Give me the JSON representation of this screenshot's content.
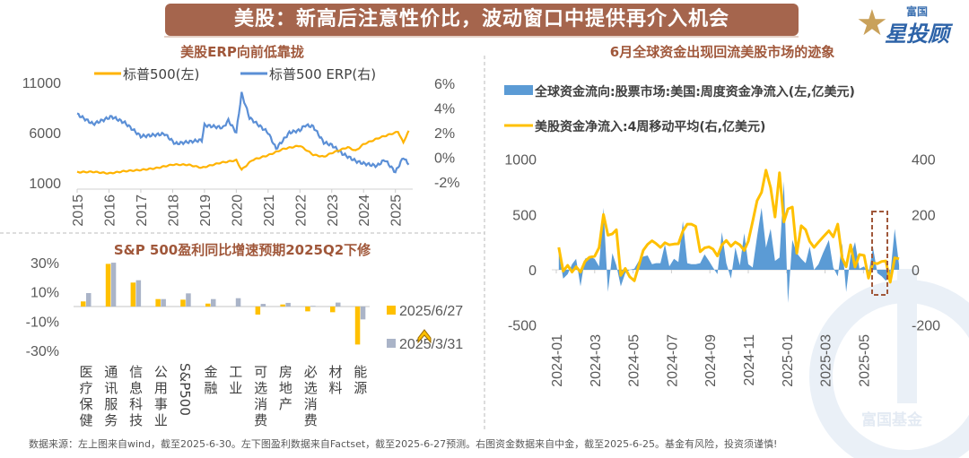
{
  "banner_title": "美股：新高后注意性价比，波动窗口中提供再介入机会",
  "logo": {
    "line1": "富国",
    "line2": "星投顾",
    "watermark": "富国基金"
  },
  "footer": "数据来源：左上图来自wind，截至2025-6-30。左下图盈利数据来自Factset，截至2025-6-27预测。右图资金数据来自中金，截至2025-6-25。基金有风险，投资须谨慎!",
  "colors": {
    "orange": "#ffb300",
    "blue": "#5b9bd5",
    "gray_bar": "#aab4c8",
    "title_brown": "#a0573a",
    "banner": "#a5654d"
  },
  "chart_data": [
    {
      "type": "line",
      "title": "美股ERP向前低靠拢",
      "legend_position": "top",
      "y_left_ticks": [
        "11000",
        "6000",
        "1000"
      ],
      "y_left_range": [
        1000,
        11000
      ],
      "y_right_ticks": [
        "6%",
        "4%",
        "2%",
        "0%",
        "-2%"
      ],
      "y_right_range": [
        -2,
        6
      ],
      "x_ticks": [
        "2015",
        "2016",
        "2017",
        "2018",
        "2019",
        "2020",
        "2021",
        "2022",
        "2023",
        "2024",
        "2025"
      ],
      "series": [
        {
          "name": "标普500(左)",
          "axis": "left",
          "color": "#ffb300",
          "points": [
            [
              "2015-01",
              2058
            ],
            [
              "2015-07",
              2100
            ],
            [
              "2016-01",
              1940
            ],
            [
              "2016-07",
              2170
            ],
            [
              "2017-01",
              2280
            ],
            [
              "2017-07",
              2470
            ],
            [
              "2018-01",
              2820
            ],
            [
              "2018-07",
              2800
            ],
            [
              "2018-12",
              2500
            ],
            [
              "2019-07",
              3000
            ],
            [
              "2020-01",
              3250
            ],
            [
              "2020-03",
              2300
            ],
            [
              "2020-07",
              3270
            ],
            [
              "2021-01",
              3750
            ],
            [
              "2021-07",
              4400
            ],
            [
              "2022-01",
              4700
            ],
            [
              "2022-06",
              3800
            ],
            [
              "2022-10",
              3600
            ],
            [
              "2023-01",
              3970
            ],
            [
              "2023-07",
              4550
            ],
            [
              "2023-10",
              4200
            ],
            [
              "2024-01",
              4850
            ],
            [
              "2024-07",
              5500
            ],
            [
              "2025-01",
              6000
            ],
            [
              "2025-02",
              6100
            ],
            [
              "2025-04",
              5000
            ],
            [
              "2025-06",
              6200
            ]
          ]
        },
        {
          "name": "标普500 ERP(右)",
          "axis": "right",
          "color": "#5b8fd6",
          "points": [
            [
              "2015-01",
              3.5
            ],
            [
              "2015-07",
              2.7
            ],
            [
              "2016-02",
              3.3
            ],
            [
              "2016-07",
              2.8
            ],
            [
              "2017-01",
              1.7
            ],
            [
              "2017-10",
              1.9
            ],
            [
              "2018-02",
              1.1
            ],
            [
              "2018-12",
              1.4
            ],
            [
              "2019-01",
              2.6
            ],
            [
              "2019-08",
              2.4
            ],
            [
              "2019-10",
              3.0
            ],
            [
              "2020-01",
              2.0
            ],
            [
              "2020-03",
              5.2
            ],
            [
              "2020-06",
              3.2
            ],
            [
              "2021-01",
              2.0
            ],
            [
              "2021-04",
              0.7
            ],
            [
              "2021-09",
              2.0
            ],
            [
              "2022-01",
              2.2
            ],
            [
              "2022-03",
              2.6
            ],
            [
              "2022-06",
              2.5
            ],
            [
              "2022-10",
              1.2
            ],
            [
              "2023-01",
              1.0
            ],
            [
              "2023-05",
              0.3
            ],
            [
              "2023-10",
              -0.3
            ],
            [
              "2024-01",
              -0.5
            ],
            [
              "2024-06",
              -0.7
            ],
            [
              "2024-09",
              -0.2
            ],
            [
              "2025-01",
              -1.2
            ],
            [
              "2025-04",
              0.0
            ],
            [
              "2025-06",
              -0.6
            ]
          ]
        }
      ]
    },
    {
      "type": "bar",
      "title": "S&P 500盈利同比增速预期2025Q2下修",
      "legend_position": "right",
      "y_ticks": [
        "30%",
        "10%",
        "-10%",
        "-30%"
      ],
      "categories": [
        "医疗保健",
        "通讯服务",
        "信息科技",
        "公用事业",
        "S&P500",
        "金融",
        "工业",
        "可选消费",
        "房地产",
        "必选消费",
        "材料",
        "能源"
      ],
      "series": [
        {
          "name": "2025/6/27",
          "color": "#ffc000",
          "values": [
            3.5,
            29.2,
            16.4,
            5.1,
            4.7,
            2.0,
            0,
            -5.5,
            1.4,
            -3.3,
            -3.9,
            -26
          ]
        },
        {
          "name": "2025/3/31",
          "color": "#aab4c8",
          "values": [
            9.2,
            30,
            18,
            5.1,
            9,
            5.1,
            5.7,
            1.8,
            2.5,
            0.4,
            2.7,
            -8.8
          ]
        }
      ]
    },
    {
      "type": "area+line",
      "title": "6月全球资金出现回流美股市场的迹象",
      "legend_position": "top",
      "y_left_ticks": [
        "1000",
        "500",
        "0",
        "-500"
      ],
      "y_left_range": [
        -500,
        1000
      ],
      "y_right_ticks": [
        "400",
        "200",
        "0",
        "-200"
      ],
      "y_right_range": [
        -200,
        400
      ],
      "x_ticks": [
        "2024-01",
        "2024-03",
        "2024-05",
        "2024-07",
        "2024-09",
        "2024-11",
        "2025-01",
        "2025-03",
        "2025-05"
      ],
      "x": [
        "2024-01-05",
        "2024-01-12",
        "2024-01-19",
        "2024-01-26",
        "2024-02-02",
        "2024-02-09",
        "2024-02-16",
        "2024-02-23",
        "2024-03-01",
        "2024-03-08",
        "2024-03-15",
        "2024-03-22",
        "2024-03-29",
        "2024-04-05",
        "2024-04-12",
        "2024-04-19",
        "2024-04-26",
        "2024-05-03",
        "2024-05-10",
        "2024-05-17",
        "2024-05-24",
        "2024-05-31",
        "2024-06-07",
        "2024-06-14",
        "2024-06-21",
        "2024-06-28",
        "2024-07-05",
        "2024-07-12",
        "2024-07-19",
        "2024-07-26",
        "2024-08-02",
        "2024-08-09",
        "2024-08-16",
        "2024-08-23",
        "2024-08-30",
        "2024-09-06",
        "2024-09-13",
        "2024-09-20",
        "2024-09-27",
        "2024-10-04",
        "2024-10-11",
        "2024-10-18",
        "2024-10-25",
        "2024-11-01",
        "2024-11-08",
        "2024-11-15",
        "2024-11-22",
        "2024-11-29",
        "2024-12-06",
        "2024-12-13",
        "2024-12-20",
        "2024-12-27",
        "2025-01-03",
        "2025-01-10",
        "2025-01-17",
        "2025-01-24",
        "2025-01-31",
        "2025-02-07",
        "2025-02-14",
        "2025-02-21",
        "2025-02-28",
        "2025-03-07",
        "2025-03-14",
        "2025-03-21",
        "2025-03-28",
        "2025-04-04",
        "2025-04-11",
        "2025-04-18",
        "2025-04-25",
        "2025-05-02",
        "2025-05-09",
        "2025-05-16",
        "2025-05-23",
        "2025-05-30",
        "2025-06-06",
        "2025-06-13",
        "2025-06-20",
        "2025-06-27"
      ],
      "series": [
        {
          "name": "全球资金流向:股票市场:美国:周度资金净流入(左,亿美元)",
          "axis": "left",
          "kind": "area",
          "color": "#5b9bd5",
          "values": [
            150,
            -80,
            -40,
            50,
            100,
            -150,
            100,
            120,
            100,
            30,
            560,
            -200,
            150,
            40,
            -150,
            -30,
            0,
            10,
            80,
            120,
            130,
            50,
            60,
            60,
            230,
            30,
            100,
            70,
            440,
            60,
            50,
            50,
            60,
            140,
            80,
            20,
            -40,
            340,
            60,
            -80,
            200,
            40,
            330,
            50,
            20,
            300,
            560,
            200,
            370,
            80,
            110,
            800,
            -300,
            270,
            150,
            100,
            60,
            210,
            0,
            50,
            150,
            270,
            20,
            -60,
            240,
            -200,
            130,
            250,
            10,
            30,
            -40,
            200,
            -30,
            -60,
            -100,
            -50,
            370,
            40
          ]
        },
        {
          "name": "美股资金净流入:4周移动平均(右,亿美元)",
          "axis": "right",
          "kind": "line",
          "color": "#ffc000",
          "values": [
            81,
            -5,
            16,
            -8,
            11,
            -8,
            30,
            45,
            49,
            80,
            200,
            125,
            130,
            145,
            -20,
            5,
            -25,
            -40,
            15,
            70,
            92,
            105,
            95,
            81,
            98,
            90,
            93,
            94,
            140,
            165,
            165,
            157,
            65,
            79,
            83,
            75,
            50,
            90,
            106,
            85,
            100,
            90,
            70,
            103,
            175,
            250,
            280,
            360,
            297,
            191,
            351,
            173,
            220,
            227,
            60,
            159,
            145,
            103,
            81,
            100,
            118,
            141,
            119,
            165,
            43,
            11,
            90,
            10,
            55,
            52,
            -30,
            25,
            22,
            30,
            32,
            -45,
            43,
            40
          ]
        }
      ]
    }
  ]
}
